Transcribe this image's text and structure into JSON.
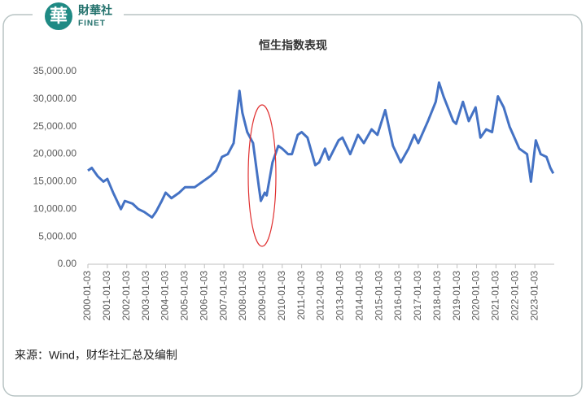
{
  "logo": {
    "mark": "華",
    "name": "財華社",
    "sub": "FINET"
  },
  "chart_data": {
    "type": "line",
    "title": "恒生指数表现",
    "x": [
      2000.0,
      2000.2,
      2000.5,
      2000.8,
      2001.0,
      2001.3,
      2001.7,
      2001.9,
      2002.3,
      2002.6,
      2002.9,
      2003.3,
      2003.5,
      2003.8,
      2004.0,
      2004.3,
      2004.7,
      2005.0,
      2005.5,
      2005.9,
      2006.3,
      2006.6,
      2006.9,
      2007.2,
      2007.5,
      2007.8,
      2007.95,
      2008.2,
      2008.5,
      2008.8,
      2008.9,
      2009.1,
      2009.2,
      2009.5,
      2009.8,
      2010.0,
      2010.3,
      2010.5,
      2010.8,
      2011.0,
      2011.3,
      2011.7,
      2011.9,
      2012.2,
      2012.4,
      2012.9,
      2013.1,
      2013.5,
      2013.9,
      2014.2,
      2014.6,
      2014.9,
      2015.3,
      2015.7,
      2016.1,
      2016.5,
      2016.8,
      2017.0,
      2017.5,
      2017.9,
      2018.07,
      2018.3,
      2018.8,
      2018.95,
      2019.3,
      2019.6,
      2019.95,
      2020.2,
      2020.5,
      2020.8,
      2021.1,
      2021.4,
      2021.7,
      2021.95,
      2022.2,
      2022.6,
      2022.8,
      2023.05,
      2023.3,
      2023.6,
      2023.8,
      2023.95
    ],
    "series": [
      {
        "name": "恒生指数",
        "color": "#4472c4",
        "values": [
          17000,
          17500,
          16000,
          15000,
          15500,
          13000,
          10000,
          11500,
          11000,
          10000,
          9500,
          8500,
          9500,
          11500,
          13000,
          12000,
          13000,
          14000,
          14000,
          15000,
          16000,
          17000,
          19500,
          20000,
          22000,
          31500,
          27500,
          24000,
          22000,
          14000,
          11500,
          13000,
          12500,
          18500,
          21500,
          21000,
          20000,
          20000,
          23500,
          24000,
          23000,
          18000,
          18500,
          21000,
          19000,
          22500,
          23000,
          20000,
          23500,
          22000,
          24500,
          23500,
          28000,
          21500,
          18500,
          21000,
          23500,
          22000,
          26000,
          29500,
          33000,
          30500,
          26000,
          25500,
          29500,
          26000,
          28500,
          23000,
          24500,
          24000,
          30500,
          28500,
          25000,
          23000,
          21000,
          20000,
          15000,
          22500,
          20000,
          19500,
          17500,
          16500
        ]
      }
    ],
    "xlim": [
      2000,
      2024
    ],
    "xticks": [
      {
        "value": 2000,
        "label": "2000-01-03"
      },
      {
        "value": 2001,
        "label": "2001-01-03"
      },
      {
        "value": 2002,
        "label": "2002-01-03"
      },
      {
        "value": 2003,
        "label": "2003-01-03"
      },
      {
        "value": 2004,
        "label": "2004-01-03"
      },
      {
        "value": 2005,
        "label": "2005-01-03"
      },
      {
        "value": 2006,
        "label": "2006-01-03"
      },
      {
        "value": 2007,
        "label": "2007-01-03"
      },
      {
        "value": 2008,
        "label": "2008-01-03"
      },
      {
        "value": 2009,
        "label": "2009-01-03"
      },
      {
        "value": 2010,
        "label": "2010-01-03"
      },
      {
        "value": 2011,
        "label": "2011-01-03"
      },
      {
        "value": 2012,
        "label": "2012-01-03"
      },
      {
        "value": 2013,
        "label": "2013-01-03"
      },
      {
        "value": 2014,
        "label": "2014-01-03"
      },
      {
        "value": 2015,
        "label": "2015-01-03"
      },
      {
        "value": 2016,
        "label": "2016-01-03"
      },
      {
        "value": 2017,
        "label": "2017-01-03"
      },
      {
        "value": 2018,
        "label": "2018-01-03"
      },
      {
        "value": 2019,
        "label": "2019-01-03"
      },
      {
        "value": 2020,
        "label": "2020-01-03"
      },
      {
        "value": 2021,
        "label": "2021-01-03"
      },
      {
        "value": 2022,
        "label": "2022-01-03"
      },
      {
        "value": 2023,
        "label": "2023-01-03"
      }
    ],
    "ylim": [
      0,
      35000
    ],
    "yticks": [
      {
        "value": 0,
        "label": "0.00"
      },
      {
        "value": 5000,
        "label": "5,000.00"
      },
      {
        "value": 10000,
        "label": "10,000.00"
      },
      {
        "value": 15000,
        "label": "15,000.00"
      },
      {
        "value": 20000,
        "label": "20,000.00"
      },
      {
        "value": 25000,
        "label": "25,000.00"
      },
      {
        "value": 30000,
        "label": "30,000.00"
      },
      {
        "value": 35000,
        "label": "35,000.00"
      }
    ],
    "grid": false,
    "source": "来源：Wind，财华社汇总及编制"
  }
}
